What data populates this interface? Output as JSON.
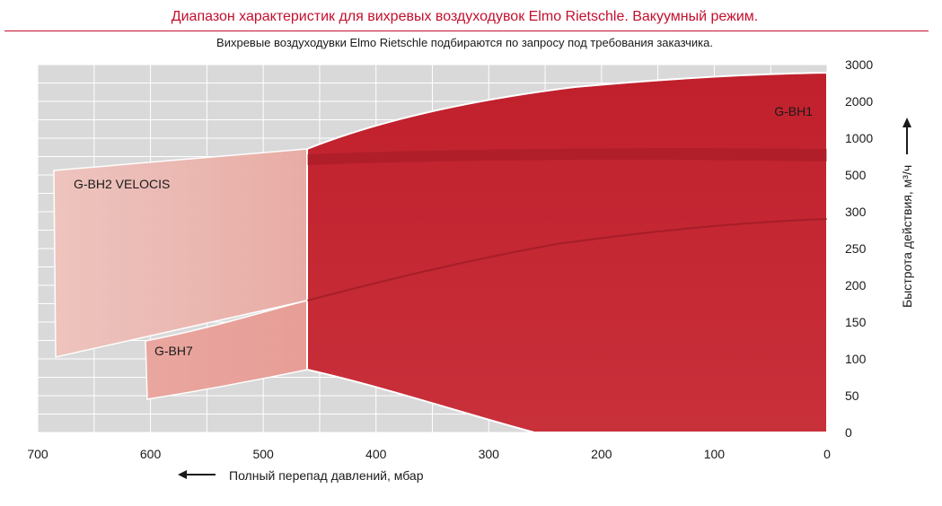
{
  "title": "Диапазон характеристик для вихревых воздуходувок Elmo Rietschle. Вакуумный режим.",
  "subtitle": "Вихревые воздуходувки Elmo Rietschle подбираются по запросу под требования заказчика.",
  "colors": {
    "title": "#c3102f",
    "gbh1": "#c22530",
    "gbh2": "#ecb8b2",
    "gbh7": "#e8958f",
    "grid": "#ffffff",
    "plot_bg": "#d9d9d9"
  },
  "chart_data": {
    "type": "area",
    "xlabel": "Полный перепад давлений, мбар",
    "ylabel": "Быстрота действия, м³/ч",
    "x_ticks": [
      "700",
      "600",
      "500",
      "400",
      "300",
      "200",
      "100",
      "0"
    ],
    "x_range": [
      700,
      0
    ],
    "y_ticks": [
      "0",
      "50",
      "100",
      "150",
      "200",
      "250",
      "300",
      "500",
      "1000",
      "2000",
      "3000"
    ],
    "y_scale": "non-linear (50 m³/h steps to 300, then 500, 1000, 2000, 3000)",
    "grid": true,
    "series": [
      {
        "name": "G-BH1",
        "upper": [
          {
            "x": 460,
            "y": 800
          },
          {
            "x": 300,
            "y": 1400
          },
          {
            "x": 150,
            "y": 2300
          },
          {
            "x": 0,
            "y": 2850
          }
        ],
        "lower": [
          {
            "x": 460,
            "y": 100
          },
          {
            "x": 400,
            "y": 60
          },
          {
            "x": 300,
            "y": 20
          },
          {
            "x": 260,
            "y": 0
          },
          {
            "x": 0,
            "y": 0
          }
        ]
      },
      {
        "name": "G-BH2 VELOCIS",
        "upper": [
          {
            "x": 685,
            "y": 570
          },
          {
            "x": 460,
            "y": 800
          }
        ],
        "lower": [
          {
            "x": 685,
            "y": 100
          },
          {
            "x": 460,
            "y": 175
          }
        ]
      },
      {
        "name": "G-BH7",
        "upper": [
          {
            "x": 605,
            "y": 120
          },
          {
            "x": 460,
            "y": 175
          },
          {
            "x": 300,
            "y": 270
          },
          {
            "x": 0,
            "y": 290
          }
        ],
        "lower": [
          {
            "x": 605,
            "y": 45
          },
          {
            "x": 460,
            "y": 100
          },
          {
            "x": 260,
            "y": 0
          }
        ]
      }
    ]
  }
}
